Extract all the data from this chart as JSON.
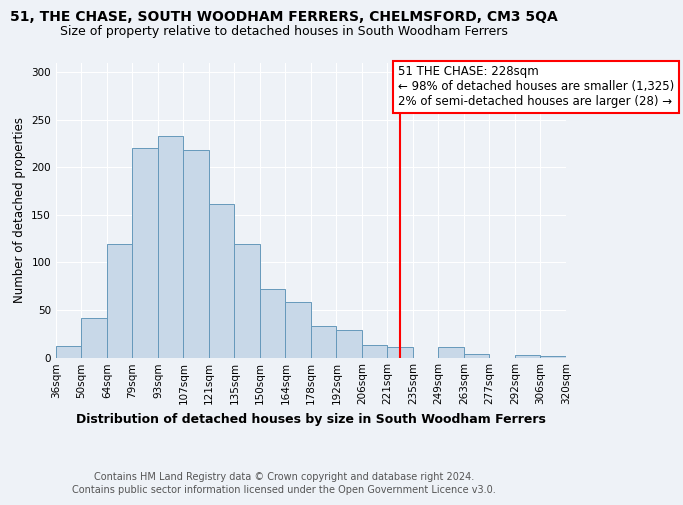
{
  "title": "51, THE CHASE, SOUTH WOODHAM FERRERS, CHELMSFORD, CM3 5QA",
  "subtitle": "Size of property relative to detached houses in South Woodham Ferrers",
  "xlabel": "Distribution of detached houses by size in South Woodham Ferrers",
  "ylabel": "Number of detached properties",
  "footer_line1": "Contains HM Land Registry data © Crown copyright and database right 2024.",
  "footer_line2": "Contains public sector information licensed under the Open Government Licence v3.0.",
  "bin_labels": [
    "36sqm",
    "50sqm",
    "64sqm",
    "79sqm",
    "93sqm",
    "107sqm",
    "121sqm",
    "135sqm",
    "150sqm",
    "164sqm",
    "178sqm",
    "192sqm",
    "206sqm",
    "221sqm",
    "235sqm",
    "249sqm",
    "263sqm",
    "277sqm",
    "292sqm",
    "306sqm",
    "320sqm"
  ],
  "bar_heights": [
    12,
    41,
    119,
    220,
    233,
    218,
    161,
    119,
    72,
    58,
    33,
    29,
    13,
    11,
    0,
    11,
    4,
    0,
    3,
    2
  ],
  "bar_color": "#c8d8e8",
  "bar_edge_color": "#6699bb",
  "vline_x": 228,
  "vline_color": "red",
  "annotation_title": "51 THE CHASE: 228sqm",
  "annotation_line1": "← 98% of detached houses are smaller (1,325)",
  "annotation_line2": "2% of semi-detached houses are larger (28) →",
  "annotation_box_edge": "red",
  "bin_edges_sqm": [
    36,
    50,
    64,
    79,
    93,
    107,
    121,
    135,
    150,
    164,
    178,
    192,
    206,
    221,
    235,
    249,
    263,
    277,
    292,
    306,
    320
  ],
  "ylim": [
    0,
    310
  ],
  "yticks": [
    0,
    50,
    100,
    150,
    200,
    250,
    300
  ],
  "title_fontsize": 10,
  "subtitle_fontsize": 9,
  "xlabel_fontsize": 9,
  "ylabel_fontsize": 8.5,
  "annotation_fontsize": 8.5,
  "tick_fontsize": 7.5,
  "footer_fontsize": 7,
  "background_color": "#eef2f7"
}
